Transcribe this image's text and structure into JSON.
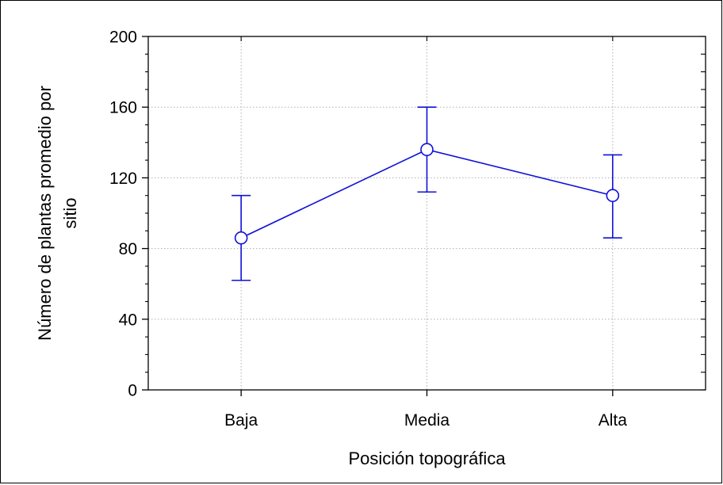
{
  "chart_data": {
    "type": "line",
    "xlabel": "Posición topográfica",
    "ylabel_lines": [
      "Número de plantas promedio por",
      "sitio"
    ],
    "categories": [
      "Baja",
      "Media",
      "Alta"
    ],
    "series": [
      {
        "values": [
          86,
          136,
          110
        ],
        "error_low": [
          62,
          112,
          86
        ],
        "error_high": [
          110,
          160,
          133
        ]
      }
    ],
    "ylim": [
      0,
      200
    ],
    "yticks": [
      0,
      40,
      80,
      120,
      160,
      200
    ],
    "grid": true,
    "colors": {
      "series": "#1010d8",
      "grid": "#b0b0b0",
      "axis": "#000000"
    }
  }
}
